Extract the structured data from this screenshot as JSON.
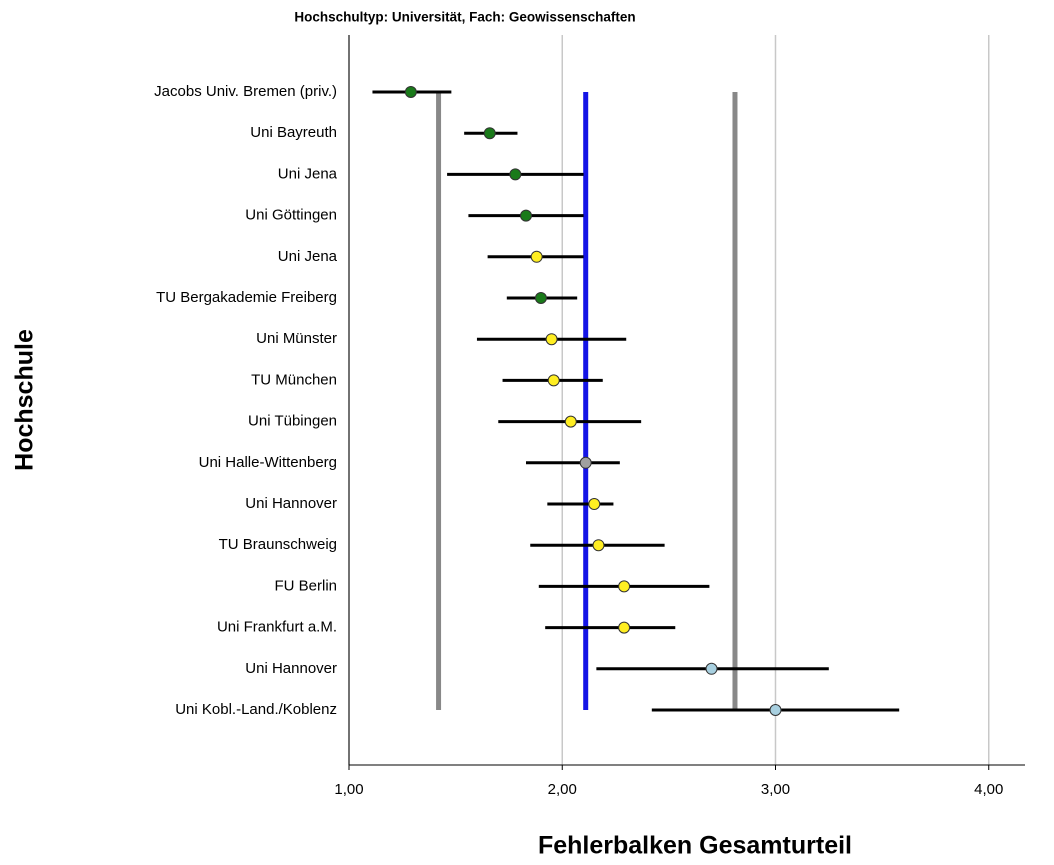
{
  "chart_data": {
    "type": "errorbar",
    "title": "Hochschultyp: Universität, Fach: Geowissenschaften",
    "xlabel": "Fehlerbalken Gesamturteil",
    "ylabel": "Hochschule",
    "categories": [
      "Jacobs Univ. Bremen (priv.)",
      "Uni Bayreuth",
      "Uni Jena",
      "Uni Göttingen",
      "Uni Jena",
      "TU Bergakademie Freiberg",
      "Uni Münster",
      "TU München",
      "Uni Tübingen",
      "Uni Halle-Wittenberg",
      "Uni Hannover",
      "TU Braunschweig",
      "FU Berlin",
      "Uni Frankfurt a.M.",
      "Uni Hannover",
      "Uni Kobl.-Land./Koblenz"
    ],
    "values": [
      1.29,
      1.66,
      1.78,
      1.83,
      1.88,
      1.9,
      1.95,
      1.96,
      2.04,
      2.11,
      2.15,
      2.17,
      2.29,
      2.29,
      2.7,
      3.0
    ],
    "lower": [
      1.11,
      1.54,
      1.46,
      1.56,
      1.65,
      1.74,
      1.6,
      1.72,
      1.7,
      1.83,
      1.93,
      1.85,
      1.89,
      1.92,
      2.16,
      2.42
    ],
    "upper": [
      1.48,
      1.79,
      2.1,
      2.1,
      2.1,
      2.07,
      2.3,
      2.19,
      2.37,
      2.27,
      2.24,
      2.48,
      2.69,
      2.53,
      3.25,
      3.58
    ],
    "colors": [
      "#1a7a1a",
      "#1a7a1a",
      "#1a7a1a",
      "#1a7a1a",
      "#ffee22",
      "#1a7a1a",
      "#ffee22",
      "#ffee22",
      "#ffee22",
      "#a0a0a0",
      "#ffee22",
      "#ffee22",
      "#ffee22",
      "#ffee22",
      "#a8d0e0",
      "#a8d0e0"
    ],
    "reference_lines": [
      {
        "value": 1.42,
        "color": "#888888"
      },
      {
        "value": 2.11,
        "color": "#1414e6"
      },
      {
        "value": 2.81,
        "color": "#888888"
      }
    ],
    "xlim": [
      1,
      4.17
    ],
    "xticks": [
      {
        "value": 1,
        "label": "1,00"
      },
      {
        "value": 2,
        "label": "2,00"
      },
      {
        "value": 3,
        "label": "3,00"
      },
      {
        "value": 4,
        "label": "4,00"
      }
    ],
    "grid": true
  }
}
